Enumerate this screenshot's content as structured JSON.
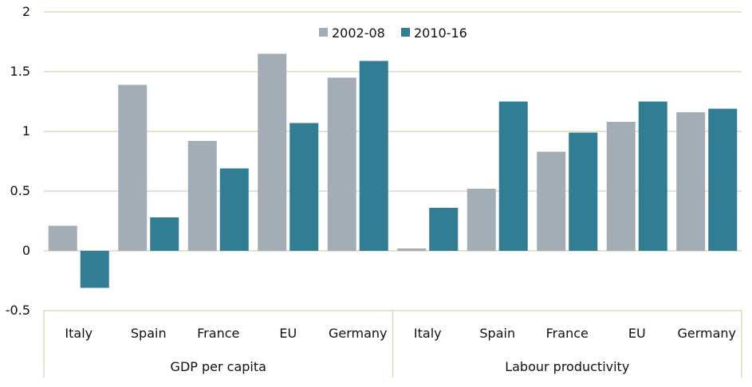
{
  "chart_data": {
    "type": "bar",
    "ylim": [
      -0.5,
      2
    ],
    "yticks": [
      "-0.5",
      "0",
      "0.5",
      "1",
      "1.5",
      "2"
    ],
    "ytick_values": [
      -0.5,
      0,
      0.5,
      1,
      1.5,
      2
    ],
    "grid": true,
    "legend_position": "top-center",
    "groups": [
      {
        "label": "GDP per capita",
        "categories": [
          "Italy",
          "Spain",
          "France",
          "EU",
          "Germany"
        ]
      },
      {
        "label": "Labour productivity",
        "categories": [
          "Italy",
          "Spain",
          "France",
          "EU",
          "Germany"
        ]
      }
    ],
    "series": [
      {
        "name": "2002-08",
        "color": "#a2adb5",
        "values": [
          0.21,
          1.39,
          0.92,
          1.65,
          1.45,
          0.02,
          0.52,
          0.83,
          1.08,
          1.16
        ]
      },
      {
        "name": "2010-16",
        "color": "#317d93",
        "values": [
          -0.31,
          0.28,
          0.69,
          1.07,
          1.59,
          0.36,
          1.25,
          0.99,
          1.25,
          1.19
        ]
      }
    ],
    "gridline_color": "#d8d2ae"
  }
}
